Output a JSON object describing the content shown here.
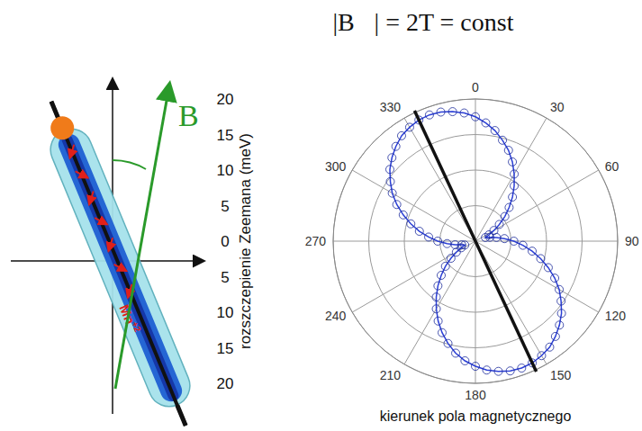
{
  "chart_data": {
    "type": "polar",
    "title": "|B⃗| = 2T = const",
    "ylabel": "rozszczepienie Zeemana (meV)",
    "xlabel": "kierunek pola magnetycznego",
    "x": [
      0,
      5,
      10,
      15,
      20,
      25,
      30,
      35,
      40,
      45,
      50,
      55,
      60,
      65,
      70,
      75,
      80,
      85,
      90,
      95,
      100,
      105,
      110,
      115,
      120,
      125,
      130,
      135,
      140,
      145,
      150,
      155,
      160,
      165,
      170,
      175,
      180,
      185,
      190,
      195,
      200,
      205,
      210,
      215,
      220,
      225,
      230,
      235,
      240,
      245,
      250,
      255,
      260,
      265,
      270,
      275,
      280,
      285,
      290,
      295,
      300,
      305,
      310,
      315,
      320,
      325,
      330,
      335,
      340,
      345,
      350,
      355
    ],
    "values": [
      17.5,
      16.7,
      15.8,
      14.7,
      13.6,
      12.3,
      10.9,
      9.5,
      8.1,
      6.7,
      5.4,
      4.1,
      3.0,
      2.1,
      1.5,
      2.1,
      3.0,
      4.1,
      5.4,
      6.7,
      8.1,
      9.5,
      10.9,
      12.3,
      13.6,
      14.7,
      15.8,
      16.7,
      17.5,
      18.2,
      18.6,
      18.9,
      19.0,
      18.9,
      18.6,
      18.2,
      17.6,
      16.9,
      16.0,
      14.9,
      13.7,
      12.4,
      11.0,
      9.6,
      8.2,
      6.8,
      5.5,
      4.2,
      3.1,
      2.2,
      1.6,
      2.0,
      2.9,
      4.0,
      5.3,
      6.6,
      8.0,
      9.4,
      10.8,
      12.2,
      13.5,
      14.6,
      15.7,
      16.6,
      17.4,
      18.1,
      18.5,
      18.8,
      18.9,
      18.8,
      18.5,
      18.1
    ],
    "xlim": [
      0,
      360
    ],
    "xticks": [
      0,
      30,
      60,
      90,
      120,
      150,
      180,
      210,
      240,
      270,
      300,
      330
    ],
    "ylim": [
      0,
      20
    ],
    "yticks": [
      0,
      5,
      10,
      15,
      20
    ],
    "color": "#2b3fd6",
    "marker": "circle",
    "grid": true,
    "wire_angle": 335
  },
  "diagram": {
    "field_label": "B⃗",
    "ion": {
      "text": "Mn",
      "sup": "+2"
    }
  }
}
